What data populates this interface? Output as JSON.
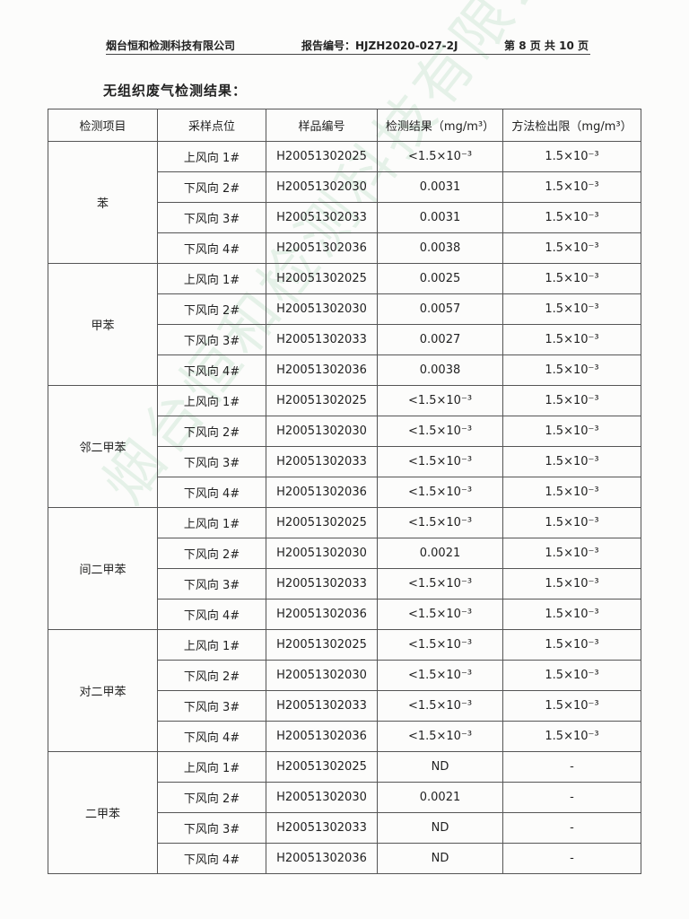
{
  "header": {
    "company": "烟台恒和检测科技有限公司",
    "report_no": "报告编号：HJZH2020-027-2J",
    "page": "第 8 页 共 10 页"
  },
  "section_title": "无组织废气检测结果：",
  "watermark": "烟台恒和检测科技有限公司",
  "table": {
    "columns": [
      "检测项目",
      "采样点位",
      "样品编号",
      "检测结果（mg/m³）",
      "方法检出限（mg/m³）"
    ],
    "groups": [
      {
        "item": "苯",
        "rows": [
          [
            "上风向 1#",
            "H20051302025",
            "<1.5×10⁻³",
            "1.5×10⁻³"
          ],
          [
            "下风向 2#",
            "H20051302030",
            "0.0031",
            "1.5×10⁻³"
          ],
          [
            "下风向 3#",
            "H20051302033",
            "0.0031",
            "1.5×10⁻³"
          ],
          [
            "下风向 4#",
            "H20051302036",
            "0.0038",
            "1.5×10⁻³"
          ]
        ]
      },
      {
        "item": "甲苯",
        "rows": [
          [
            "上风向 1#",
            "H20051302025",
            "0.0025",
            "1.5×10⁻³"
          ],
          [
            "下风向 2#",
            "H20051302030",
            "0.0057",
            "1.5×10⁻³"
          ],
          [
            "下风向 3#",
            "H20051302033",
            "0.0027",
            "1.5×10⁻³"
          ],
          [
            "下风向 4#",
            "H20051302036",
            "0.0038",
            "1.5×10⁻³"
          ]
        ]
      },
      {
        "item": "邻二甲苯",
        "rows": [
          [
            "上风向 1#",
            "H20051302025",
            "<1.5×10⁻³",
            "1.5×10⁻³"
          ],
          [
            "下风向 2#",
            "H20051302030",
            "<1.5×10⁻³",
            "1.5×10⁻³"
          ],
          [
            "下风向 3#",
            "H20051302033",
            "<1.5×10⁻³",
            "1.5×10⁻³"
          ],
          [
            "下风向 4#",
            "H20051302036",
            "<1.5×10⁻³",
            "1.5×10⁻³"
          ]
        ]
      },
      {
        "item": "间二甲苯",
        "rows": [
          [
            "上风向 1#",
            "H20051302025",
            "<1.5×10⁻³",
            "1.5×10⁻³"
          ],
          [
            "下风向 2#",
            "H20051302030",
            "0.0021",
            "1.5×10⁻³"
          ],
          [
            "下风向 3#",
            "H20051302033",
            "<1.5×10⁻³",
            "1.5×10⁻³"
          ],
          [
            "下风向 4#",
            "H20051302036",
            "<1.5×10⁻³",
            "1.5×10⁻³"
          ]
        ]
      },
      {
        "item": "对二甲苯",
        "rows": [
          [
            "上风向 1#",
            "H20051302025",
            "<1.5×10⁻³",
            "1.5×10⁻³"
          ],
          [
            "下风向 2#",
            "H20051302030",
            "<1.5×10⁻³",
            "1.5×10⁻³"
          ],
          [
            "下风向 3#",
            "H20051302033",
            "<1.5×10⁻³",
            "1.5×10⁻³"
          ],
          [
            "下风向 4#",
            "H20051302036",
            "<1.5×10⁻³",
            "1.5×10⁻³"
          ]
        ]
      },
      {
        "item": "二甲苯",
        "rows": [
          [
            "上风向 1#",
            "H20051302025",
            "ND",
            "-"
          ],
          [
            "下风向 2#",
            "H20051302030",
            "0.0021",
            "-"
          ],
          [
            "下风向 3#",
            "H20051302033",
            "ND",
            "-"
          ],
          [
            "下风向 4#",
            "H20051302036",
            "ND",
            "-"
          ]
        ]
      }
    ]
  }
}
